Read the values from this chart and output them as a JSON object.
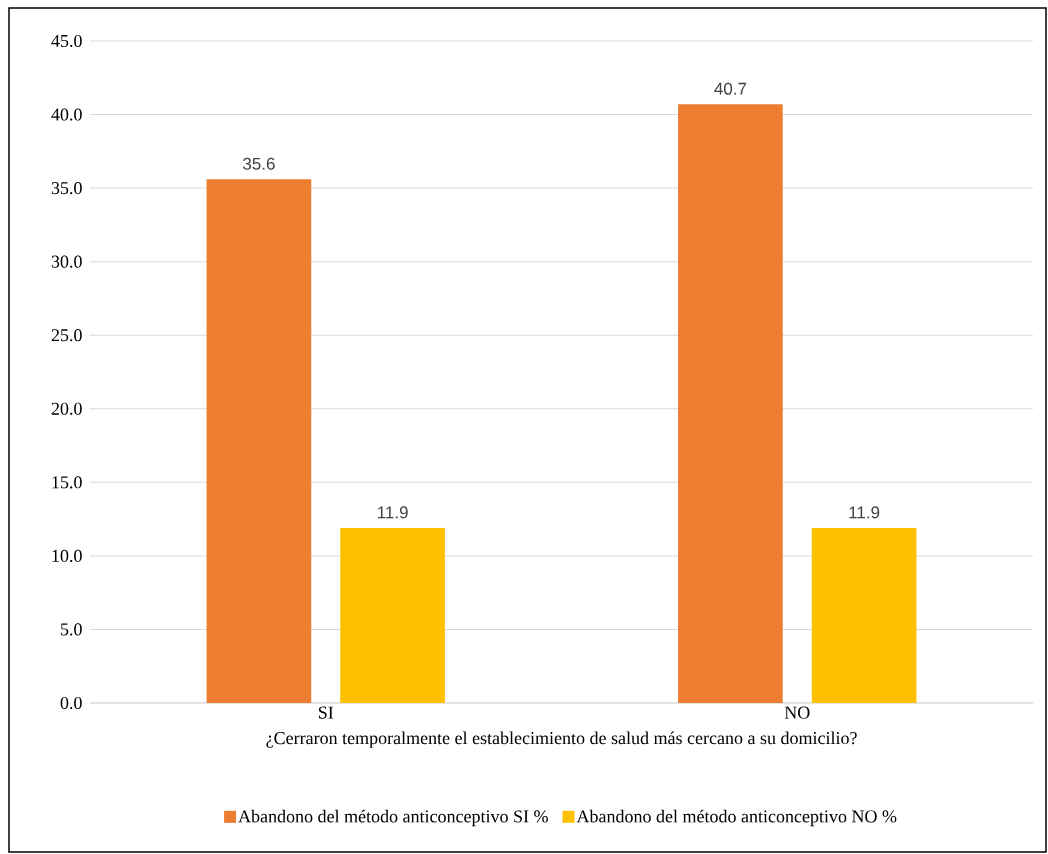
{
  "chart_data": {
    "type": "bar",
    "categories": [
      "SI",
      "NO"
    ],
    "xlabel": "¿Cerraron temporalmente el establecimiento de salud más cercano a su domicilio?",
    "series": [
      {
        "name": "Abandono del método anticonceptivo SI %",
        "color": "#ed7d31",
        "values": [
          35.6,
          40.7
        ]
      },
      {
        "name": "Abandono del método anticonceptivo NO %",
        "color": "#ffc000",
        "values": [
          11.9,
          11.9
        ]
      }
    ],
    "ylim": [
      0,
      45
    ],
    "yticks": [
      {
        "value": 0,
        "label": "0.0"
      },
      {
        "value": 5,
        "label": "5.0"
      },
      {
        "value": 10,
        "label": "10.0"
      },
      {
        "value": 15,
        "label": "15.0"
      },
      {
        "value": 20,
        "label": "20.0"
      },
      {
        "value": 25,
        "label": "25.0"
      },
      {
        "value": 30,
        "label": "30.0"
      },
      {
        "value": 35,
        "label": "35.0"
      },
      {
        "value": 40,
        "label": "40.0"
      },
      {
        "value": 45,
        "label": "45.0"
      }
    ],
    "grid": "y",
    "legend": "bottom",
    "data_labels": true
  }
}
